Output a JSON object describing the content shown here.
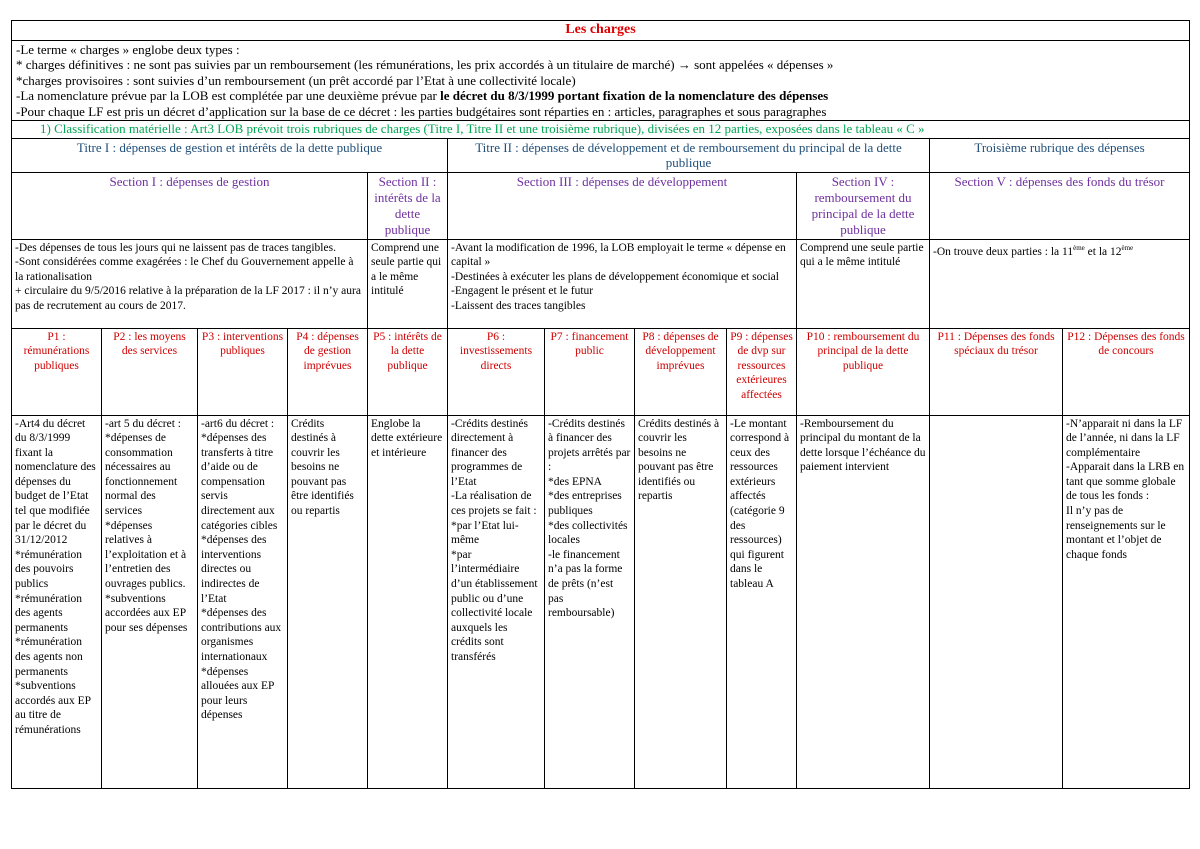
{
  "title": "Les charges",
  "intro": {
    "line1": "-Le terme « charges » englobe deux types :",
    "line2": "* charges définitives : ne sont pas suivies par un remboursement (les rémunérations, les prix accordés à un titulaire de marché)",
    "line2_arrow": "→",
    "line2_end": " sont appelées « dépenses »",
    "line3": "*charges provisoires : sont suivies d’un remboursement (un prêt accordé par l’Etat à une collectivité locale)",
    "line4_start": "-La nomenclature prévue par la LOB  est complétée par une deuxième prévue par ",
    "line4_bold": "le décret du 8/3/1999 portant fixation de la nomenclature des dépenses",
    "line5": "-Pour chaque LF est pris un décret d’application sur la base de ce décret : les parties budgétaires sont réparties en : articles, paragraphes et sous paragraphes"
  },
  "classification": "1)    Classification matérielle : Art3 LOB prévoit trois rubriques de charges (Titre I, Titre II et une troisième rubrique), divisées en 12 parties, exposées dans le tableau « C »",
  "titres": [
    "Titre I : dépenses de gestion et intérêts de la dette publique",
    "Titre II : dépenses de développement et de remboursement du principal de la dette publique",
    "Troisième rubrique des dépenses"
  ],
  "sections": [
    "Section I : dépenses de gestion",
    "Section II : intérêts de la dette publique",
    "Section III : dépenses de développement",
    "Section IV : remboursement du principal de la dette publique",
    "Section V : dépenses des fonds du trésor"
  ],
  "descriptions": [
    "-Des dépenses de tous les jours qui ne laissent pas de traces tangibles.\n-Sont considérées comme exagérées : le Chef du Gouvernement appelle à la rationalisation\n+ circulaire du 9/5/2016 relative à la préparation de la LF 2017 : il n’y aura pas de recrutement au cours de 2017.",
    "Comprend une seule partie qui a le même intitulé",
    "-Avant la modification de 1996, la LOB employait le terme « dépense en capital »\n-Destinées à exécuter les plans de développement économique et social\n-Engagent le présent et le futur\n-Laissent des traces tangibles",
    "Comprend une seule partie qui a le même intitulé",
    {
      "start": "-On trouve deux parties : la 11",
      "sup1": "ème",
      "mid": " et la 12",
      "sup2": "ème"
    }
  ],
  "parts": [
    "P1 : rémunérations publiques",
    "P2 : les moyens des services",
    "P3 : interventions publiques",
    "P4 : dépenses de gestion imprévues",
    "P5 : intérêts de la dette publique",
    "P6 : investissements directs",
    "P7 : financement public",
    "P8 : dépenses de développement imprévues",
    "P9 : dépenses de dvp sur ressources extérieures affectées",
    "P10 : remboursement du principal de la dette publique",
    "P11 : Dépenses des fonds spéciaux du trésor",
    "P12 : Dépenses des fonds de concours"
  ],
  "contents": [
    "-Art4 du décret du 8/3/1999 fixant la nomenclature des dépenses du budget de l’Etat tel que modifiée par le décret du 31/12/2012\n*rémunération des pouvoirs publics\n*rémunération des agents permanents\n*rémunération des agents non permanents\n*subventions accordés aux EP au titre de rémunérations",
    "-art 5 du décret :\n*dépenses de consommation nécessaires au fonctionnement normal des services\n*dépenses relatives à l’exploitation et à l’entretien des ouvrages publics.\n*subventions accordées aux EP pour ses dépenses",
    "-art6 du décret :\n*dépenses des transferts à titre d’aide ou de compensation servis directement aux catégories cibles\n*dépenses des interventions directes ou indirectes de l’Etat\n*dépenses des contributions aux organismes internationaux\n*dépenses allouées aux EP pour leurs dépenses",
    "Crédits destinés à couvrir les besoins ne pouvant pas être identifiés ou repartis",
    "Englobe la dette extérieure et intérieure",
    "-Crédits destinés directement à financer des programmes de l’Etat\n-La réalisation de ces projets se fait :\n*par l’Etat lui-même\n*par l’intermédiaire d’un établissement public ou d’une collectivité locale auxquels les crédits sont transférés",
    "-Crédits destinés à financer des projets arrêtés par :\n*des EPNA\n*des entreprises publiques\n*des collectivités locales\n-le financement n’a pas la forme de prêts (n’est pas remboursable)",
    "Crédits destinés à couvrir les besoins ne pouvant pas être identifiés ou repartis",
    "-Le montant correspond à ceux des ressources extérieurs affectés (catégorie 9 des ressources) qui figurent dans le tableau A",
    "-Remboursement du principal du montant de  la dette lorsque l’échéance du paiement intervient",
    "",
    "-N’apparait ni dans la LF de l’année, ni dans la LF complémentaire\n-Apparait dans la LRB en tant que somme globale de tous les fonds :\nIl n’y pas de renseignements sur le montant et l’objet de chaque fonds"
  ],
  "colors": {
    "title": "#e00000",
    "classification": "#00a651",
    "titre": "#1f4e79",
    "section": "#7030a0",
    "part": "#d00000"
  }
}
